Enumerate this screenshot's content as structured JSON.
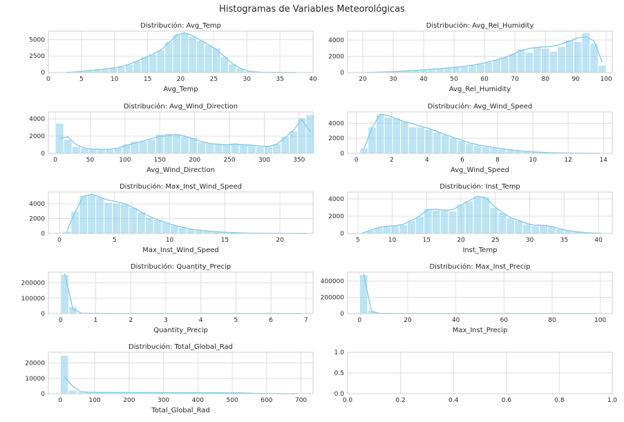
{
  "suptitle": "Histogramas de Variables Meteorológicas",
  "colors": {
    "bar": "#87ceeb",
    "kde": "#87ceeb",
    "grid": "#dddddd",
    "frame": "#cccccc"
  },
  "chart_data": [
    {
      "type": "bar",
      "title": "Distribución: Avg_Temp",
      "xlabel": "Avg_Temp",
      "xlim": [
        0,
        40
      ],
      "ylim": [
        0,
        6300
      ],
      "xticks": [
        0,
        5,
        10,
        15,
        20,
        25,
        30,
        35,
        40
      ],
      "yticks": [
        0,
        2500,
        5000
      ],
      "bin_start": 2,
      "bin_width": 1.2,
      "values": [
        10,
        80,
        180,
        300,
        420,
        550,
        700,
        900,
        1250,
        1750,
        2400,
        2800,
        3400,
        4700,
        5800,
        6100,
        5500,
        4900,
        4200,
        3700,
        2400,
        1300,
        650,
        230,
        80,
        30,
        15,
        8,
        4,
        2
      ],
      "kde": [
        10,
        80,
        180,
        300,
        420,
        550,
        700,
        900,
        1250,
        1750,
        2250,
        2800,
        3400,
        4500,
        5700,
        6050,
        5600,
        4900,
        4200,
        3500,
        2450,
        1350,
        650,
        230,
        80,
        30,
        15,
        8,
        4,
        2
      ]
    },
    {
      "type": "bar",
      "title": "Distribución: Avg_Rel_Humidity",
      "xlabel": "Avg_Rel_Humidity",
      "xlim": [
        15,
        102
      ],
      "ylim": [
        0,
        5100
      ],
      "xticks": [
        20,
        30,
        40,
        50,
        60,
        70,
        80,
        90,
        100
      ],
      "yticks": [
        0,
        2000,
        4000
      ],
      "bin_start": 20,
      "bin_width": 2.667,
      "values": [
        10,
        30,
        60,
        100,
        150,
        200,
        260,
        330,
        400,
        480,
        560,
        660,
        760,
        900,
        1080,
        1300,
        1600,
        1900,
        2300,
        2900,
        2500,
        3100,
        3000,
        2600,
        3200,
        4000,
        3800,
        4900,
        3600,
        900
      ],
      "kde": [
        10,
        30,
        60,
        100,
        150,
        200,
        260,
        330,
        400,
        480,
        560,
        660,
        760,
        900,
        1080,
        1300,
        1550,
        1850,
        2250,
        2700,
        2950,
        3100,
        3150,
        3250,
        3500,
        3900,
        4250,
        4400,
        3900,
        1300
      ]
    },
    {
      "type": "bar",
      "title": "Distribución: Avg_Wind_Direction",
      "xlabel": "Avg_Wind_Direction",
      "xlim": [
        -10,
        370
      ],
      "ylim": [
        0,
        4800
      ],
      "xticks": [
        0,
        50,
        100,
        150,
        200,
        250,
        300,
        350
      ],
      "yticks": [
        0,
        2000,
        4000
      ],
      "bin_start": 0,
      "bin_width": 12,
      "values": [
        3500,
        1600,
        800,
        600,
        500,
        550,
        500,
        700,
        1100,
        1400,
        1400,
        1600,
        2200,
        2300,
        2200,
        2000,
        1800,
        1300,
        1200,
        1100,
        1000,
        1200,
        1000,
        1000,
        800,
        800,
        1100,
        2000,
        2600,
        4100,
        4500
      ],
      "kde": [
        1700,
        1900,
        1000,
        600,
        500,
        450,
        480,
        600,
        900,
        1200,
        1400,
        1700,
        1950,
        2050,
        2200,
        2000,
        1700,
        1350,
        1150,
        1050,
        1000,
        1050,
        1000,
        950,
        850,
        800,
        1050,
        1800,
        2700,
        3900,
        2500
      ]
    },
    {
      "type": "bar",
      "title": "Distribución: Avg_Wind_Speed",
      "xlabel": "Avg_Wind_Speed",
      "xlim": [
        -0.5,
        14.5
      ],
      "ylim": [
        0,
        5500
      ],
      "xticks": [
        0,
        2,
        4,
        6,
        8,
        10,
        12,
        14
      ],
      "yticks": [
        0,
        2000,
        4000
      ],
      "bin_start": 0.2,
      "bin_width": 0.46,
      "values": [
        700,
        3500,
        5200,
        4800,
        4700,
        4300,
        3500,
        3500,
        3200,
        2800,
        2500,
        2100,
        1700,
        1300,
        1050,
        900,
        800,
        600,
        450,
        350,
        250,
        180,
        120,
        80,
        50,
        30,
        20,
        10,
        5,
        2
      ],
      "kde": [
        600,
        3400,
        5200,
        5000,
        4600,
        4200,
        3900,
        3600,
        3300,
        2900,
        2500,
        2100,
        1750,
        1400,
        1150,
        950,
        780,
        620,
        480,
        360,
        260,
        190,
        130,
        90,
        60,
        35,
        20,
        10,
        5,
        2
      ]
    },
    {
      "type": "bar",
      "title": "Distribución: Max_Inst_Wind_Speed",
      "xlabel": "Max_Inst_Wind_Speed",
      "xlim": [
        -1,
        23
      ],
      "ylim": [
        0,
        5600
      ],
      "xticks": [
        0,
        5,
        10,
        15,
        20
      ],
      "yticks": [
        0,
        2000,
        4000
      ],
      "bin_start": 0.3,
      "bin_width": 0.75,
      "values": [
        300,
        3000,
        5100,
        5300,
        4900,
        4200,
        4100,
        4000,
        3500,
        2900,
        2200,
        1900,
        1500,
        1100,
        800,
        600,
        450,
        320,
        240,
        180,
        120,
        80,
        50,
        35,
        25,
        15,
        10,
        5,
        3,
        2
      ],
      "kde": [
        300,
        2900,
        5000,
        5300,
        4900,
        4500,
        4300,
        4000,
        3500,
        2900,
        2300,
        1850,
        1450,
        1100,
        820,
        600,
        450,
        330,
        240,
        170,
        120,
        80,
        50,
        35,
        25,
        15,
        10,
        5,
        3,
        2
      ]
    },
    {
      "type": "bar",
      "title": "Distribución: Inst_Temp",
      "xlabel": "Inst_Temp",
      "xlim": [
        3.5,
        42
      ],
      "ylim": [
        0,
        4800
      ],
      "xticks": [
        5,
        10,
        15,
        20,
        25,
        30,
        35,
        40
      ],
      "yticks": [
        0,
        2000,
        4000
      ],
      "bin_start": 5,
      "bin_width": 1.2,
      "values": [
        30,
        350,
        700,
        850,
        900,
        1000,
        1500,
        2000,
        2900,
        2700,
        2800,
        2600,
        3400,
        3700,
        4300,
        4200,
        3000,
        2400,
        1800,
        1500,
        1100,
        900,
        1000,
        800,
        500,
        350,
        200,
        100,
        50,
        20
      ],
      "kde": [
        30,
        350,
        700,
        850,
        900,
        1050,
        1500,
        2050,
        2750,
        2800,
        2700,
        2750,
        3300,
        3800,
        4300,
        4150,
        3150,
        2400,
        1850,
        1500,
        1150,
        950,
        950,
        800,
        520,
        340,
        200,
        100,
        50,
        20
      ]
    },
    {
      "type": "bar",
      "title": "Distribución: Quantity_Precip",
      "xlabel": "Quantity_Precip",
      "xlim": [
        -0.35,
        7.2
      ],
      "ylim": [
        0,
        270000
      ],
      "xticks": [
        0,
        1,
        2,
        3,
        4,
        5,
        6,
        7
      ],
      "yticks": [
        0,
        100000,
        200000
      ],
      "bin_start": 0,
      "bin_width": 0.233,
      "values": [
        255000,
        45000,
        3000,
        1500,
        800,
        400,
        200,
        100,
        50,
        20,
        10,
        5,
        3,
        2,
        1,
        1,
        1,
        1,
        1,
        1,
        1,
        1,
        1,
        1,
        1,
        1,
        1,
        1,
        1,
        1
      ],
      "kde": [
        260000,
        30000,
        3000,
        1500,
        800,
        400,
        200,
        100,
        50,
        20,
        10,
        5,
        3,
        2,
        1,
        1,
        1,
        1,
        1,
        1,
        1,
        1,
        1,
        1,
        1,
        1,
        1,
        1,
        1,
        1
      ]
    },
    {
      "type": "bar",
      "title": "Distribución: Max_Inst_Precip",
      "xlabel": "Max_Inst_Precip",
      "xlim": [
        -5,
        105
      ],
      "ylim": [
        0,
        510000
      ],
      "xticks": [
        0,
        20,
        40,
        60,
        80,
        100
      ],
      "yticks": [
        0,
        200000,
        400000
      ],
      "bin_start": 0,
      "bin_width": 3.33,
      "values": [
        480000,
        40000,
        3000,
        1200,
        500,
        200,
        100,
        50,
        20,
        10,
        5,
        3,
        2,
        1,
        1,
        1,
        1,
        1,
        1,
        1,
        1,
        1,
        1,
        1,
        1,
        1,
        1,
        1,
        1,
        1
      ],
      "kde": [
        490000,
        20000,
        3000,
        1200,
        500,
        200,
        100,
        50,
        20,
        10,
        5,
        3,
        2,
        1,
        1,
        1,
        1,
        1,
        1,
        1,
        1,
        1,
        1,
        1,
        1,
        1,
        1,
        1,
        1,
        1
      ]
    },
    {
      "type": "bar",
      "title": "Distribución: Total_Global_Rad",
      "xlabel": "Total_Global_Rad",
      "xlim": [
        -35,
        735
      ],
      "ylim": [
        0,
        27000
      ],
      "xticks": [
        0,
        100,
        200,
        300,
        400,
        500,
        600,
        700
      ],
      "yticks": [
        0,
        10000,
        20000
      ],
      "bin_start": 0,
      "bin_width": 23.3,
      "values": [
        25000,
        2200,
        1000,
        900,
        850,
        800,
        800,
        780,
        750,
        730,
        720,
        700,
        700,
        680,
        670,
        650,
        650,
        630,
        620,
        600,
        580,
        560,
        500,
        300,
        150,
        80,
        40,
        20,
        10,
        5
      ],
      "kde": [
        11000,
        5000,
        1300,
        950,
        850,
        820,
        800,
        780,
        760,
        740,
        720,
        710,
        700,
        690,
        680,
        660,
        650,
        630,
        620,
        600,
        580,
        550,
        480,
        320,
        170,
        80,
        40,
        20,
        10,
        5
      ]
    },
    {
      "type": "table",
      "title": "",
      "xlabel": "",
      "xlim": [
        0,
        1
      ],
      "ylim": [
        0,
        1
      ],
      "xticks": [
        0.0,
        0.2,
        0.4,
        0.6,
        0.8,
        1.0
      ],
      "xtick_labels": [
        "0.0",
        "0.2",
        "0.4",
        "0.6",
        "0.8",
        "1.0"
      ],
      "yticks": [
        0.0,
        0.5,
        1.0
      ],
      "ytick_labels": [
        "0.0",
        "0.5",
        "1.0"
      ],
      "values": []
    }
  ]
}
